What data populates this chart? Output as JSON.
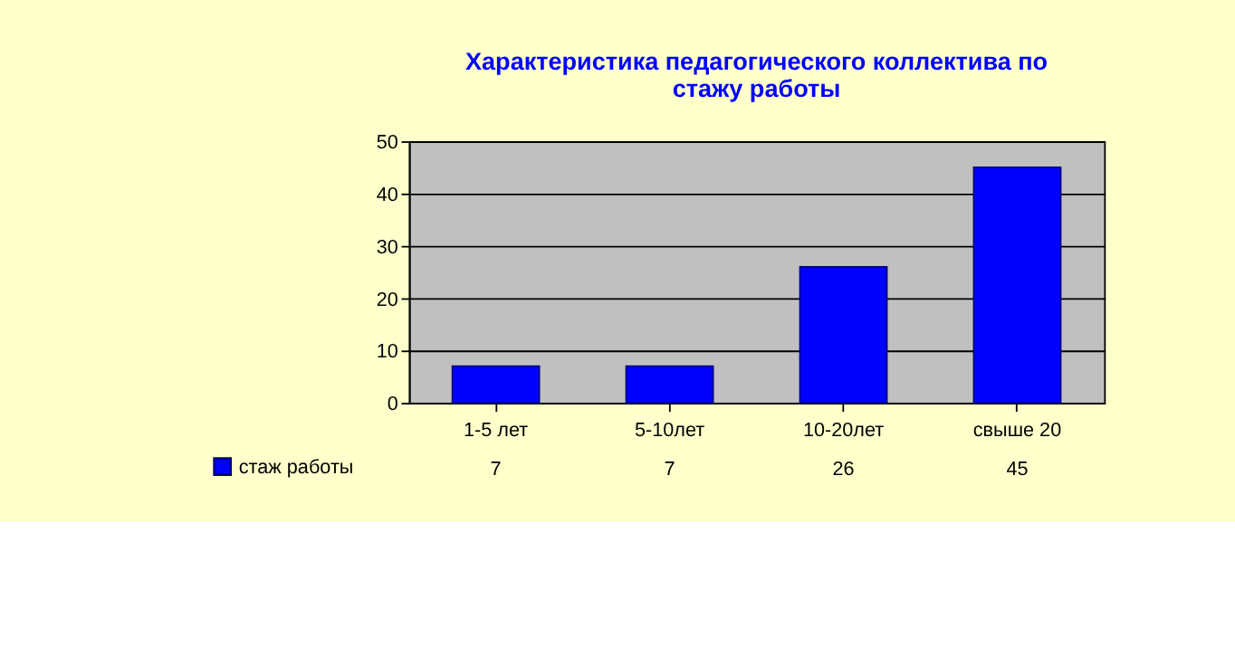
{
  "chart_data": {
    "type": "bar",
    "title": "Характеристика педагогического коллектива по стажу работы",
    "categories": [
      "1-5 лет",
      "5-10лет",
      "10-20лет",
      "свыше 20"
    ],
    "series": [
      {
        "name": "стаж работы",
        "color": "#0000ff",
        "values": [
          7,
          7,
          26,
          45
        ]
      }
    ],
    "ylim": [
      0,
      50
    ],
    "yticks": [
      0,
      10,
      20,
      30,
      40,
      50
    ],
    "grid": "y",
    "data_labels": true,
    "legend": "bottom"
  }
}
